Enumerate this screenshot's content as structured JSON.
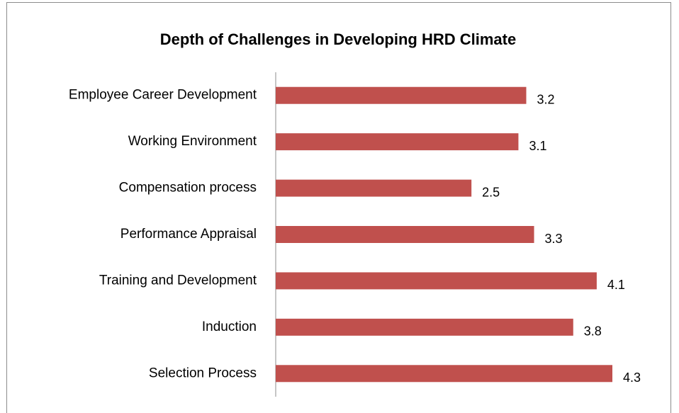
{
  "chart_data": {
    "type": "bar",
    "orientation": "horizontal",
    "title": "Depth of Challenges in Developing HRD Climate",
    "categories": [
      "Employee Career Development",
      "Working Environment",
      "Compensation process",
      "Performance Appraisal",
      "Training and Development",
      "Induction",
      "Selection Process"
    ],
    "values": [
      3.2,
      3.1,
      2.5,
      3.3,
      4.1,
      3.8,
      4.3
    ],
    "color": "#c0504d"
  }
}
